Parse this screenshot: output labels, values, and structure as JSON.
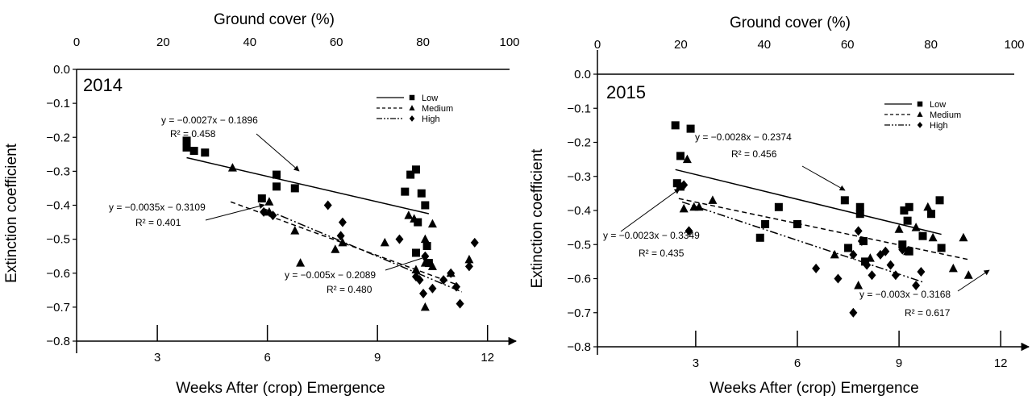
{
  "chart_data": [
    {
      "type": "scatter",
      "year_label": "2014",
      "xlabel": "Weeks After (crop) Emergence",
      "ylabel": "Extinction coefficient",
      "top_xlabel": "Ground cover (%)",
      "x_ticks": [
        3,
        6,
        9,
        12
      ],
      "x_tick_labels": [
        "3",
        "6",
        "9",
        "12"
      ],
      "y_ticks": [
        0.0,
        -0.1,
        -0.2,
        -0.3,
        -0.4,
        -0.5,
        -0.6,
        -0.7,
        -0.8
      ],
      "y_tick_labels": [
        "0.0",
        "−0.1",
        "−0.2",
        "−0.3",
        "−0.4",
        "−0.5",
        "−0.6",
        "−0.7",
        "−0.8"
      ],
      "top_ticks": [
        0,
        20,
        40,
        60,
        80,
        100
      ],
      "top_tick_labels": [
        "0",
        "20",
        "40",
        "60",
        "80",
        "100"
      ],
      "xlim": [
        0.8,
        12.6
      ],
      "ylim": [
        -0.8,
        0.0
      ],
      "legend": {
        "position": "top-right",
        "entries": [
          {
            "label": "Low",
            "line": "solid",
            "marker": "square"
          },
          {
            "label": "Medium",
            "line": "dashed",
            "marker": "triangle"
          },
          {
            "label": "High",
            "line": "dashdot",
            "marker": "diamond"
          }
        ]
      },
      "series": [
        {
          "name": "Low",
          "marker": "square",
          "points": [
            [
              3.8,
              -0.21
            ],
            [
              3.8,
              -0.23
            ],
            [
              4.0,
              -0.24
            ],
            [
              4.3,
              -0.245
            ],
            [
              5.85,
              -0.38
            ],
            [
              6.25,
              -0.31
            ],
            [
              6.25,
              -0.345
            ],
            [
              6.75,
              -0.35
            ],
            [
              9.75,
              -0.36
            ],
            [
              9.9,
              -0.31
            ],
            [
              10.05,
              -0.295
            ],
            [
              10.2,
              -0.365
            ],
            [
              10.3,
              -0.4
            ],
            [
              10.1,
              -0.45
            ],
            [
              10.35,
              -0.52
            ],
            [
              10.05,
              -0.54
            ],
            [
              10.4,
              -0.57
            ]
          ]
        },
        {
          "name": "Medium",
          "marker": "triangle",
          "points": [
            [
              5.05,
              -0.29
            ],
            [
              6.05,
              -0.39
            ],
            [
              6.05,
              -0.42
            ],
            [
              6.75,
              -0.475
            ],
            [
              6.9,
              -0.57
            ],
            [
              8.05,
              -0.51
            ],
            [
              7.85,
              -0.53
            ],
            [
              9.2,
              -0.51
            ],
            [
              9.85,
              -0.43
            ],
            [
              10.0,
              -0.44
            ],
            [
              10.5,
              -0.455
            ],
            [
              10.3,
              -0.5
            ],
            [
              10.5,
              -0.58
            ],
            [
              10.05,
              -0.59
            ],
            [
              10.3,
              -0.7
            ],
            [
              11.0,
              -0.6
            ],
            [
              11.5,
              -0.56
            ],
            [
              10.3,
              -0.57
            ]
          ]
        },
        {
          "name": "High",
          "marker": "diamond",
          "points": [
            [
              5.9,
              -0.42
            ],
            [
              6.15,
              -0.43
            ],
            [
              7.65,
              -0.4
            ],
            [
              8.05,
              -0.45
            ],
            [
              8.0,
              -0.49
            ],
            [
              9.6,
              -0.5
            ],
            [
              10.3,
              -0.55
            ],
            [
              10.05,
              -0.61
            ],
            [
              10.15,
              -0.62
            ],
            [
              10.25,
              -0.66
            ],
            [
              10.5,
              -0.645
            ],
            [
              10.8,
              -0.62
            ],
            [
              11.0,
              -0.6
            ],
            [
              11.15,
              -0.64
            ],
            [
              11.25,
              -0.69
            ],
            [
              11.5,
              -0.58
            ],
            [
              11.65,
              -0.51
            ]
          ]
        }
      ],
      "trendlines": [
        {
          "series": "Low",
          "style": "solid",
          "x": [
            3.8,
            10.4
          ],
          "y": [
            -0.26,
            -0.425
          ],
          "equation": "y = −0.0027x − 0.1896",
          "r2": "R² = 0.458"
        },
        {
          "series": "Medium",
          "style": "dashed",
          "x": [
            5.0,
            11.2
          ],
          "y": [
            -0.39,
            -0.635
          ],
          "equation": "y = −0.0035x − 0.3109",
          "r2": "R² = 0.401"
        },
        {
          "series": "High",
          "style": "dashdot",
          "x": [
            5.9,
            11.3
          ],
          "y": [
            -0.41,
            -0.655
          ],
          "equation": "y = −0.005x − 0.2089",
          "r2": "R² = 0.480"
        }
      ]
    },
    {
      "type": "scatter",
      "year_label": "2015",
      "xlabel": "Weeks After (crop) Emergence",
      "ylabel": "Extinction coefficient",
      "top_xlabel": "Ground cover (%)",
      "x_ticks": [
        3,
        6,
        9,
        12
      ],
      "x_tick_labels": [
        "3",
        "6",
        "9",
        "12"
      ],
      "y_ticks": [
        0.0,
        -0.1,
        -0.2,
        -0.3,
        -0.4,
        -0.5,
        -0.6,
        -0.7,
        -0.8
      ],
      "y_tick_labels": [
        "0.0",
        "−0.1",
        "−0.2",
        "−0.3",
        "−0.4",
        "−0.5",
        "−0.6",
        "−0.7",
        "−0.8"
      ],
      "top_ticks": [
        0,
        20,
        40,
        60,
        80,
        100
      ],
      "top_tick_labels": [
        "0",
        "20",
        "40",
        "60",
        "80",
        "100"
      ],
      "xlim": [
        0.1,
        12.4
      ],
      "ylim": [
        -0.8,
        0.0
      ],
      "legend": {
        "position": "top-right",
        "entries": [
          {
            "label": "Low",
            "line": "solid",
            "marker": "square"
          },
          {
            "label": "Medium",
            "line": "dashed",
            "marker": "triangle"
          },
          {
            "label": "High",
            "line": "dashdot",
            "marker": "diamond"
          }
        ]
      },
      "series": [
        {
          "name": "Low",
          "marker": "square",
          "points": [
            [
              2.4,
              -0.15
            ],
            [
              2.55,
              -0.24
            ],
            [
              2.85,
              -0.16
            ],
            [
              2.55,
              -0.33
            ],
            [
              2.45,
              -0.32
            ],
            [
              5.45,
              -0.39
            ],
            [
              6.0,
              -0.44
            ],
            [
              4.9,
              -0.48
            ],
            [
              5.05,
              -0.44
            ],
            [
              7.4,
              -0.37
            ],
            [
              7.85,
              -0.39
            ],
            [
              7.85,
              -0.41
            ],
            [
              9.15,
              -0.4
            ],
            [
              9.3,
              -0.39
            ],
            [
              9.25,
              -0.43
            ],
            [
              9.95,
              -0.41
            ],
            [
              10.2,
              -0.37
            ],
            [
              10.25,
              -0.51
            ],
            [
              7.95,
              -0.49
            ],
            [
              7.5,
              -0.51
            ],
            [
              8.0,
              -0.55
            ],
            [
              9.3,
              -0.52
            ],
            [
              9.1,
              -0.5
            ],
            [
              9.7,
              -0.475
            ]
          ]
        },
        {
          "name": "Medium",
          "marker": "triangle",
          "points": [
            [
              2.75,
              -0.25
            ],
            [
              2.65,
              -0.395
            ],
            [
              2.95,
              -0.39
            ],
            [
              3.1,
              -0.39
            ],
            [
              3.5,
              -0.37
            ],
            [
              7.8,
              -0.62
            ],
            [
              8.15,
              -0.54
            ],
            [
              9.0,
              -0.455
            ],
            [
              9.25,
              -0.52
            ],
            [
              9.5,
              -0.45
            ],
            [
              9.85,
              -0.39
            ],
            [
              10.0,
              -0.48
            ],
            [
              10.6,
              -0.57
            ],
            [
              10.9,
              -0.48
            ],
            [
              11.05,
              -0.59
            ],
            [
              7.1,
              -0.53
            ]
          ]
        },
        {
          "name": "High",
          "marker": "diamond",
          "points": [
            [
              2.65,
              -0.325
            ],
            [
              2.8,
              -0.46
            ],
            [
              6.55,
              -0.57
            ],
            [
              7.2,
              -0.6
            ],
            [
              7.65,
              -0.7
            ],
            [
              7.65,
              -0.53
            ],
            [
              7.8,
              -0.46
            ],
            [
              7.9,
              -0.49
            ],
            [
              8.05,
              -0.56
            ],
            [
              8.2,
              -0.59
            ],
            [
              8.45,
              -0.53
            ],
            [
              8.6,
              -0.52
            ],
            [
              8.75,
              -0.56
            ],
            [
              8.9,
              -0.59
            ],
            [
              9.5,
              -0.62
            ],
            [
              9.65,
              -0.58
            ],
            [
              9.1,
              -0.515
            ]
          ]
        }
      ],
      "trendlines": [
        {
          "series": "Low",
          "style": "solid",
          "x": [
            2.4,
            10.25
          ],
          "y": [
            -0.28,
            -0.47
          ],
          "equation": "y = −0.0028x − 0.2374",
          "r2": "R² = 0.456"
        },
        {
          "series": "Medium",
          "style": "dashed",
          "x": [
            2.5,
            11.1
          ],
          "y": [
            -0.365,
            -0.545
          ],
          "equation": "y = −0.0023x − 0.3349",
          "r2": "R² = 0.435"
        },
        {
          "series": "High",
          "style": "dashdot",
          "x": [
            2.6,
            9.7
          ],
          "y": [
            -0.375,
            -0.61
          ],
          "equation": "y = −0.003x − 0.3168",
          "r2": "R² = 0.617"
        }
      ]
    }
  ]
}
